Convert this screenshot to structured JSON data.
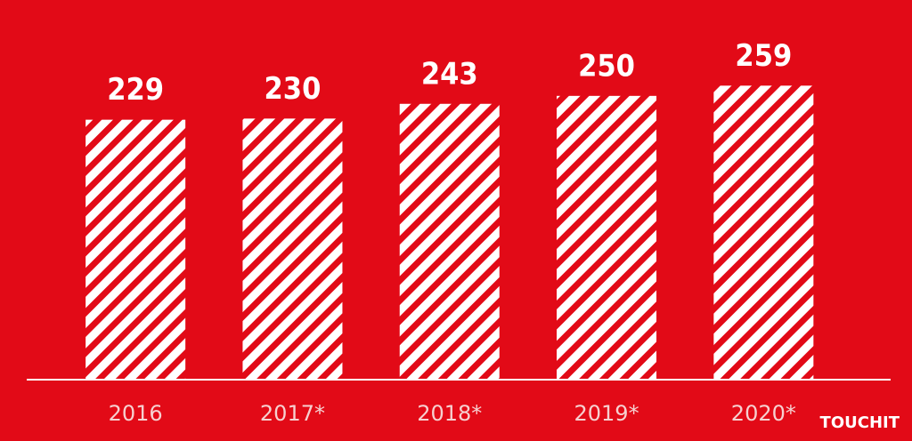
{
  "chart_data": {
    "type": "bar",
    "categories": [
      "2016",
      "2017*",
      "2018*",
      "2019*",
      "2020*"
    ],
    "values": [
      229,
      230,
      243,
      250,
      259
    ],
    "color": "#ffffff",
    "ylim": [
      0,
      300
    ],
    "watermark": "TOUCHIT"
  }
}
